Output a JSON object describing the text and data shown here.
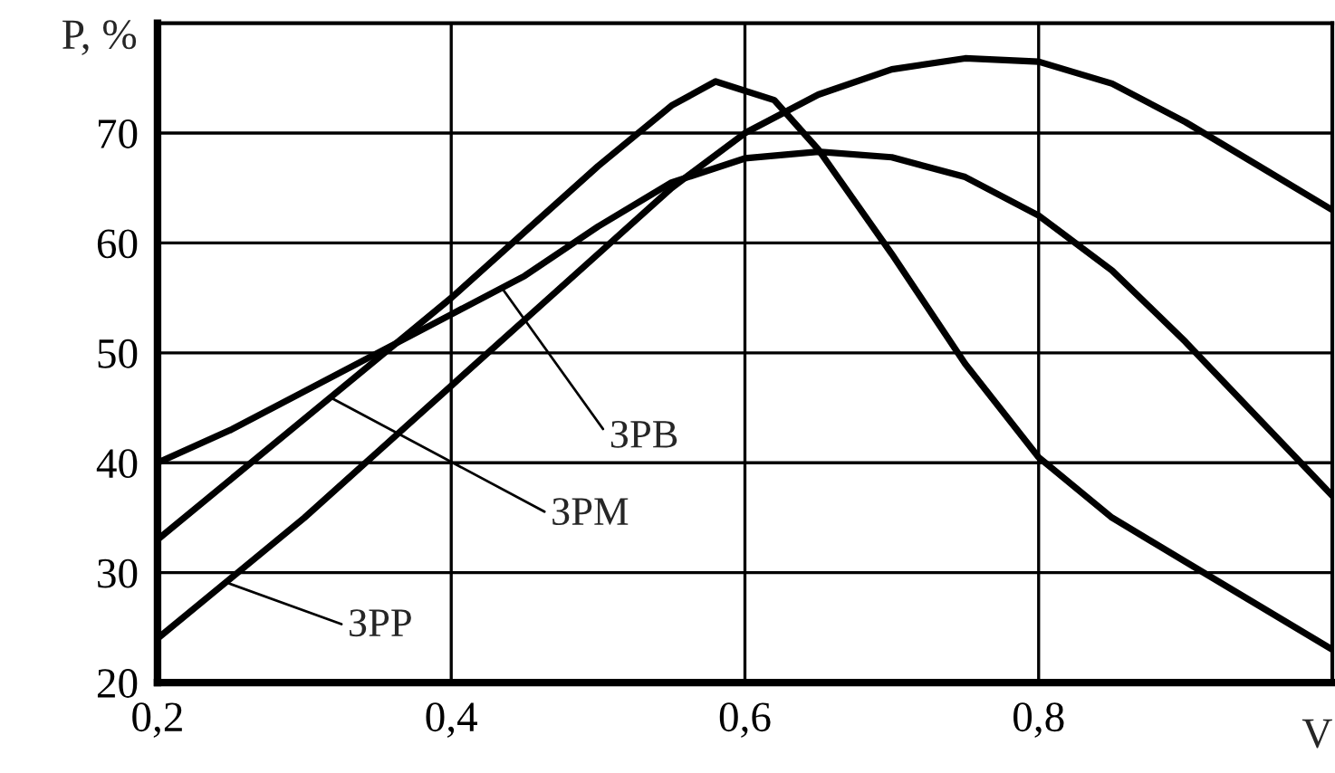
{
  "chart_data": {
    "type": "line",
    "xlabel": "V",
    "ylabel": "P, %",
    "xlim": [
      0.2,
      1.0
    ],
    "ylim": [
      20,
      80
    ],
    "xticks": [
      {
        "value": 0.2,
        "label": "0,2"
      },
      {
        "value": 0.4,
        "label": "0,4"
      },
      {
        "value": 0.6,
        "label": "0,6"
      },
      {
        "value": 0.8,
        "label": "0,8"
      }
    ],
    "yticks": [
      20,
      30,
      40,
      50,
      60,
      70
    ],
    "grid": true,
    "legend": false,
    "marker": "none",
    "line_style": "solid",
    "series": [
      {
        "color": "#000000",
        "x": [
          0.2,
          0.25,
          0.3,
          0.35,
          0.4,
          0.45,
          0.5,
          0.55,
          0.6,
          0.65,
          0.7,
          0.75,
          0.8,
          0.85,
          0.9,
          0.95,
          1.0
        ],
        "values": [
          40,
          43,
          46.5,
          50,
          53.5,
          57,
          61.5,
          65.5,
          67.7,
          68.3,
          67.8,
          66,
          62.5,
          57.5,
          51,
          44,
          37
        ]
      },
      {
        "color": "#000000",
        "x": [
          0.2,
          0.25,
          0.3,
          0.35,
          0.4,
          0.45,
          0.5,
          0.55,
          0.58,
          0.62,
          0.65,
          0.7,
          0.75,
          0.8,
          0.85,
          0.9,
          0.95,
          1.0
        ],
        "values": [
          33,
          38.5,
          44,
          49.5,
          55,
          61,
          67,
          72.5,
          74.7,
          73,
          68.5,
          59,
          49,
          40.5,
          35,
          31,
          27,
          23
        ]
      },
      {
        "color": "#000000",
        "x": [
          0.2,
          0.25,
          0.3,
          0.35,
          0.4,
          0.45,
          0.5,
          0.55,
          0.6,
          0.65,
          0.7,
          0.75,
          0.8,
          0.85,
          0.9,
          0.95,
          1.0
        ],
        "values": [
          24,
          29.5,
          35,
          41,
          47,
          53,
          59,
          65,
          70,
          73.5,
          75.8,
          76.8,
          76.5,
          74.5,
          71,
          67,
          63
        ]
      }
    ],
    "annotations": [
      {
        "text": "ЗРВ",
        "x": 0.434,
        "y": 56
      },
      {
        "text": "ЗРМ",
        "x": 0.317,
        "y": 46
      },
      {
        "text": "ЗРР",
        "x": 0.249,
        "y": 29
      }
    ]
  }
}
